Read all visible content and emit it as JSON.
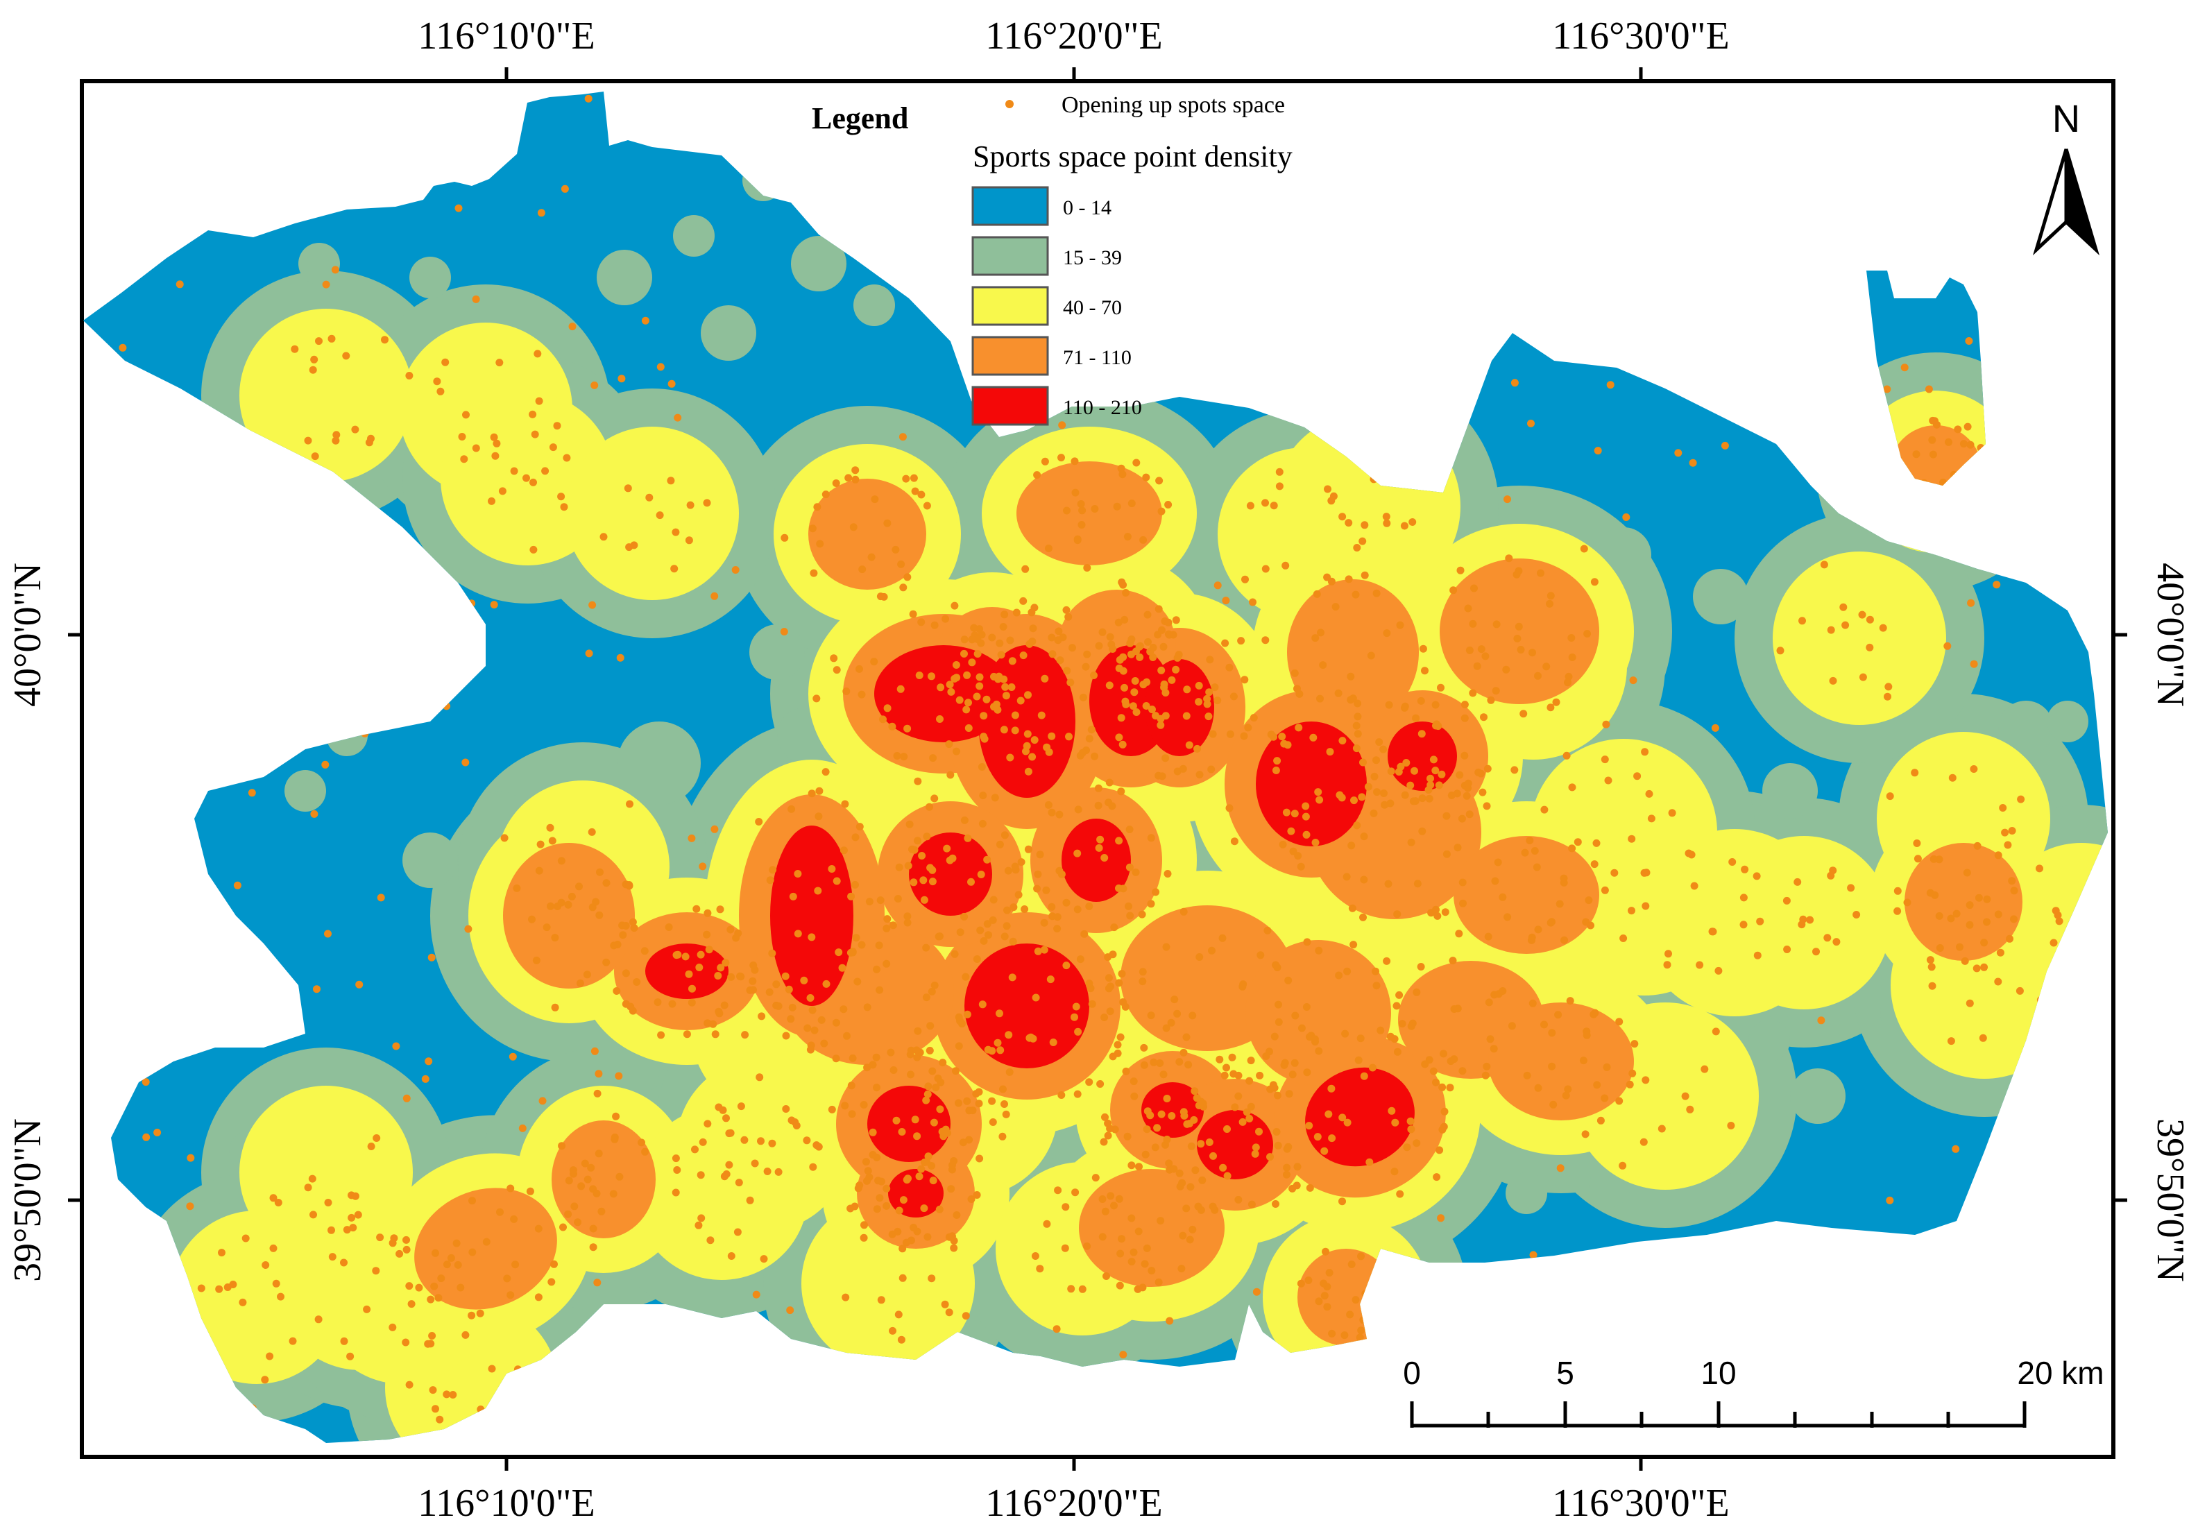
{
  "map": {
    "colors": {
      "density_0_14": "#0095CA",
      "density_15_39": "#8FBF9A",
      "density_40_70": "#F8F84C",
      "density_71_110": "#F8902D",
      "density_110_210": "#F40808",
      "point": "#F08A17",
      "frame": "#000000"
    }
  },
  "coordinates": {
    "top": [
      "116°10'0\"E",
      "116°20'0\"E",
      "116°30'0\"E"
    ],
    "bottom": [
      "116°10'0\"E",
      "116°20'0\"E",
      "116°30'0\"E"
    ],
    "left": [
      "40°0'0\"N",
      "39°50'0\"N"
    ],
    "right": [
      "40°0'0\"N",
      "39°50'0\"N"
    ]
  },
  "legend": {
    "title": "Legend",
    "point_label": "Opening up spots space",
    "density_title": "Sports space point density",
    "classes": [
      {
        "label": "0 - 14",
        "color": "#0095CA"
      },
      {
        "label": "15 - 39",
        "color": "#8FBF9A"
      },
      {
        "label": "40 - 70",
        "color": "#F8F84C"
      },
      {
        "label": "71 - 110",
        "color": "#F8902D"
      },
      {
        "label": "110 - 210",
        "color": "#F40808"
      }
    ]
  },
  "north_arrow": {
    "label": "N"
  },
  "scale_bar": {
    "ticks": [
      "0",
      "5",
      "10",
      "20 km"
    ]
  }
}
